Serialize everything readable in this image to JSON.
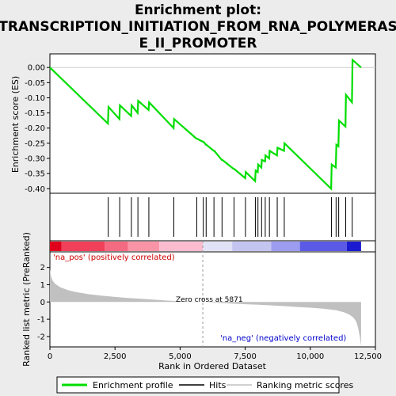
{
  "chart_data": {
    "type": "line",
    "title_line1": "Enrichment plot:",
    "title_line2": "TRANSCRIPTION_INITIATION_FROM_RNA_POLYMERAS",
    "title_line3": "E_II_PROMOTER",
    "es_panel": {
      "ylabel": "Enrichment score (ES)",
      "ylim": [
        -0.415,
        0.045
      ],
      "yticks": [
        0.0,
        -0.05,
        -0.1,
        -0.15,
        -0.2,
        -0.25,
        -0.3,
        -0.35,
        -0.4
      ],
      "ytick_labels": [
        "0.00",
        "-0.05",
        "-0.10",
        "-0.15",
        "-0.20",
        "-0.25",
        "-0.30",
        "-0.35",
        "-0.40"
      ],
      "line_color": "#00dd00",
      "x": [
        0,
        2230,
        2250,
        2670,
        2690,
        3120,
        3140,
        3370,
        3390,
        3790,
        3810,
        4750,
        4770,
        5630,
        5650,
        5880,
        5900,
        5990,
        6010,
        6290,
        6310,
        6600,
        6620,
        7060,
        7080,
        7500,
        7520,
        7880,
        7900,
        7980,
        8000,
        8120,
        8140,
        8260,
        8280,
        8420,
        8440,
        8720,
        8740,
        8990,
        9010,
        10800,
        10820,
        10980,
        11000,
        11080,
        11100,
        11350,
        11370,
        11600,
        11620,
        11950
      ],
      "y": [
        0.0,
        -0.185,
        -0.13,
        -0.17,
        -0.125,
        -0.16,
        -0.125,
        -0.15,
        -0.11,
        -0.14,
        -0.115,
        -0.2,
        -0.17,
        -0.235,
        -0.235,
        -0.245,
        -0.245,
        -0.255,
        -0.255,
        -0.275,
        -0.275,
        -0.305,
        -0.305,
        -0.335,
        -0.335,
        -0.365,
        -0.345,
        -0.375,
        -0.34,
        -0.345,
        -0.32,
        -0.33,
        -0.305,
        -0.31,
        -0.29,
        -0.3,
        -0.275,
        -0.29,
        -0.265,
        -0.275,
        -0.25,
        -0.4,
        -0.32,
        -0.33,
        -0.255,
        -0.26,
        -0.175,
        -0.195,
        -0.09,
        -0.115,
        0.025,
        0.0
      ]
    },
    "hits": [
      2240,
      2680,
      3130,
      3380,
      3800,
      4760,
      5640,
      5890,
      6000,
      6300,
      6610,
      7070,
      7510,
      7890,
      7990,
      8130,
      8270,
      8430,
      8730,
      9000,
      10810,
      10990,
      11090,
      11360,
      11610
    ],
    "rank_panel": {
      "ylabel": "Ranked list metric (PreRanked)",
      "ylim": [
        -2.6,
        2.9
      ],
      "yticks": [
        2,
        1,
        0,
        -1,
        -2
      ],
      "ytick_labels": [
        "2",
        "1",
        "0",
        "-1",
        "-2"
      ],
      "metric_x": [
        0,
        40,
        100,
        200,
        400,
        700,
        1000,
        1500,
        2000,
        2500,
        3000,
        3500,
        4000,
        4500,
        5000,
        5500,
        5871,
        6200,
        6800,
        7500,
        8000,
        8500,
        9000,
        9500,
        10000,
        10500,
        11000,
        11300,
        11500,
        11650,
        11750,
        11800,
        11850,
        11900,
        11950
      ],
      "metric_y": [
        1.9,
        1.5,
        1.25,
        1.05,
        0.85,
        0.68,
        0.57,
        0.45,
        0.36,
        0.29,
        0.23,
        0.18,
        0.13,
        0.08,
        0.04,
        0.015,
        0.0,
        -0.03,
        -0.08,
        -0.13,
        -0.16,
        -0.2,
        -0.24,
        -0.29,
        -0.33,
        -0.39,
        -0.48,
        -0.6,
        -0.73,
        -0.9,
        -1.1,
        -1.3,
        -1.6,
        -2.0,
        -2.55
      ],
      "fill_color": "#c0c0c0",
      "zero_cross_label": "Zero cross at 5871",
      "zero_cross_x": 5871,
      "pos_label": "'na_pos' (positively correlated)",
      "neg_label": "'na_neg' (negatively correlated)"
    },
    "xaxis": {
      "xlabel": "Rank in Ordered Dataset",
      "xlim": [
        0,
        12500
      ],
      "xticks": [
        0,
        2500,
        5000,
        7500,
        10000,
        12500
      ],
      "xtick_labels": [
        "0",
        "2,500",
        "5,000",
        "7,500",
        "10,000",
        "12,500"
      ]
    },
    "heatbar": {
      "segments": [
        {
          "x0": 0,
          "x1": 450,
          "color": "#e0001c"
        },
        {
          "x0": 450,
          "x1": 2100,
          "color": "#f0405a"
        },
        {
          "x0": 2100,
          "x1": 3000,
          "color": "#f46a80"
        },
        {
          "x0": 3000,
          "x1": 4200,
          "color": "#f894a6"
        },
        {
          "x0": 4200,
          "x1": 5871,
          "color": "#fcbcd0"
        },
        {
          "x0": 5871,
          "x1": 7000,
          "color": "#e2e2f6"
        },
        {
          "x0": 7000,
          "x1": 8500,
          "color": "#c4c4f0"
        },
        {
          "x0": 8500,
          "x1": 9600,
          "color": "#9c9cf0"
        },
        {
          "x0": 9600,
          "x1": 11400,
          "color": "#5a5ae6"
        },
        {
          "x0": 11400,
          "x1": 11950,
          "color": "#1a1ad0"
        }
      ]
    },
    "legend": {
      "items": [
        {
          "label": "Enrichment profile",
          "color": "#00dd00",
          "kind": "line"
        },
        {
          "label": "Hits",
          "color": "#000000",
          "kind": "line"
        },
        {
          "label": "Ranking metric scores",
          "color": "#c0c0c0",
          "kind": "line"
        }
      ]
    }
  }
}
